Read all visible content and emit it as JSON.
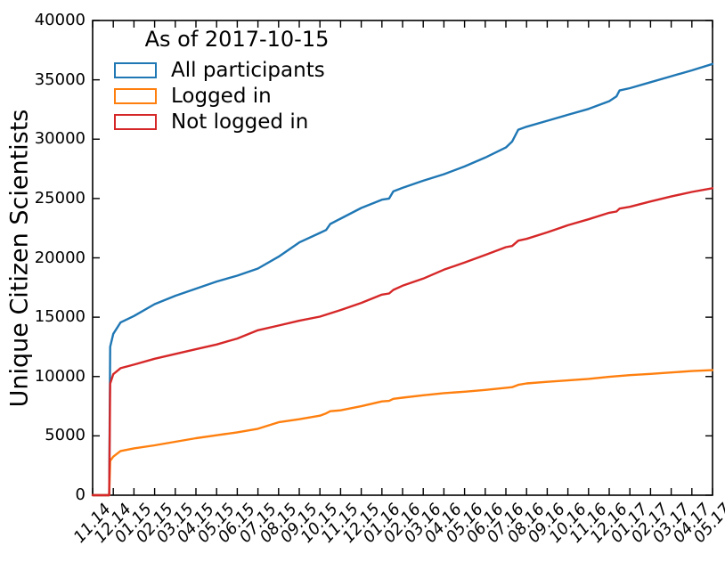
{
  "chart_data": {
    "type": "line",
    "legend_title": "As of 2017-10-15",
    "ylabel": "Unique Citizen Scientists",
    "xlabel": "",
    "ylim": [
      0,
      40000
    ],
    "yticks": [
      0,
      5000,
      10000,
      15000,
      20000,
      25000,
      30000,
      35000,
      40000
    ],
    "xtick_labels": [
      "11.14",
      "12.14",
      "01.15",
      "02.15",
      "03.15",
      "04.15",
      "05.15",
      "06.15",
      "07.15",
      "08.15",
      "09.15",
      "10.15",
      "11.15",
      "12.15",
      "01.16",
      "02.16",
      "03.16",
      "04.16",
      "05.16",
      "06.16",
      "07.16",
      "08.16",
      "09.16",
      "10.16",
      "11.16",
      "12.16",
      "01.17",
      "02.17",
      "03.17",
      "04.17",
      "05.17"
    ],
    "x_range_months": [
      0,
      30
    ],
    "grid": false,
    "legend_position": "upper-left",
    "tick_direction": "in",
    "frame_color": "#000000",
    "series": [
      {
        "name": "All participants",
        "color": "#1f77b4",
        "points": [
          [
            0,
            0
          ],
          [
            0.8,
            0
          ],
          [
            0.85,
            12500
          ],
          [
            1,
            13600
          ],
          [
            1.35,
            14550
          ],
          [
            2,
            15100
          ],
          [
            3,
            16100
          ],
          [
            4,
            16800
          ],
          [
            5,
            17400
          ],
          [
            6,
            18000
          ],
          [
            7,
            18500
          ],
          [
            8,
            19100
          ],
          [
            9,
            20100
          ],
          [
            10,
            21300
          ],
          [
            11,
            22100
          ],
          [
            11.3,
            22350
          ],
          [
            11.5,
            22850
          ],
          [
            12,
            23300
          ],
          [
            13,
            24200
          ],
          [
            14,
            24900
          ],
          [
            14.35,
            25000
          ],
          [
            14.55,
            25600
          ],
          [
            15,
            25900
          ],
          [
            16,
            26500
          ],
          [
            17,
            27050
          ],
          [
            18,
            27700
          ],
          [
            19,
            28450
          ],
          [
            20,
            29300
          ],
          [
            20.3,
            29800
          ],
          [
            20.6,
            30800
          ],
          [
            21,
            31050
          ],
          [
            22,
            31550
          ],
          [
            23,
            32050
          ],
          [
            24,
            32550
          ],
          [
            25,
            33200
          ],
          [
            25.35,
            33600
          ],
          [
            25.5,
            34100
          ],
          [
            26,
            34300
          ],
          [
            27,
            34800
          ],
          [
            28,
            35300
          ],
          [
            29,
            35800
          ],
          [
            30,
            36340
          ]
        ]
      },
      {
        "name": "Logged in",
        "color": "#ff7f0e",
        "points": [
          [
            0,
            0
          ],
          [
            0.8,
            0
          ],
          [
            0.85,
            2900
          ],
          [
            1,
            3250
          ],
          [
            1.35,
            3720
          ],
          [
            2,
            3950
          ],
          [
            3,
            4200
          ],
          [
            4,
            4500
          ],
          [
            5,
            4800
          ],
          [
            6,
            5050
          ],
          [
            7,
            5300
          ],
          [
            8,
            5600
          ],
          [
            9,
            6150
          ],
          [
            10,
            6400
          ],
          [
            11,
            6700
          ],
          [
            11.3,
            6900
          ],
          [
            11.5,
            7080
          ],
          [
            12,
            7150
          ],
          [
            13,
            7500
          ],
          [
            14,
            7900
          ],
          [
            14.35,
            7950
          ],
          [
            14.55,
            8120
          ],
          [
            15,
            8220
          ],
          [
            16,
            8420
          ],
          [
            17,
            8600
          ],
          [
            18,
            8720
          ],
          [
            19,
            8870
          ],
          [
            20,
            9050
          ],
          [
            20.3,
            9100
          ],
          [
            20.6,
            9300
          ],
          [
            21,
            9420
          ],
          [
            22,
            9550
          ],
          [
            23,
            9670
          ],
          [
            24,
            9800
          ],
          [
            25,
            9970
          ],
          [
            26,
            10120
          ],
          [
            27,
            10220
          ],
          [
            28,
            10340
          ],
          [
            29,
            10460
          ],
          [
            30,
            10540
          ]
        ]
      },
      {
        "name": "Not logged in",
        "color": "#d62728",
        "points": [
          [
            0,
            0
          ],
          [
            0.8,
            0
          ],
          [
            0.85,
            9400
          ],
          [
            1,
            10200
          ],
          [
            1.35,
            10700
          ],
          [
            2,
            11000
          ],
          [
            3,
            11500
          ],
          [
            4,
            11900
          ],
          [
            5,
            12300
          ],
          [
            6,
            12700
          ],
          [
            7,
            13200
          ],
          [
            8,
            13900
          ],
          [
            9,
            14300
          ],
          [
            10,
            14700
          ],
          [
            11,
            15050
          ],
          [
            12,
            15600
          ],
          [
            13,
            16200
          ],
          [
            14,
            16900
          ],
          [
            14.35,
            17000
          ],
          [
            14.55,
            17300
          ],
          [
            15,
            17650
          ],
          [
            16,
            18250
          ],
          [
            17,
            19000
          ],
          [
            18,
            19600
          ],
          [
            19,
            20250
          ],
          [
            20,
            20900
          ],
          [
            20.3,
            21000
          ],
          [
            20.6,
            21450
          ],
          [
            21,
            21600
          ],
          [
            22,
            22150
          ],
          [
            23,
            22750
          ],
          [
            24,
            23250
          ],
          [
            25,
            23800
          ],
          [
            25.35,
            23900
          ],
          [
            25.5,
            24150
          ],
          [
            26,
            24300
          ],
          [
            27,
            24750
          ],
          [
            28,
            25170
          ],
          [
            29,
            25550
          ],
          [
            30,
            25870
          ]
        ]
      }
    ]
  }
}
